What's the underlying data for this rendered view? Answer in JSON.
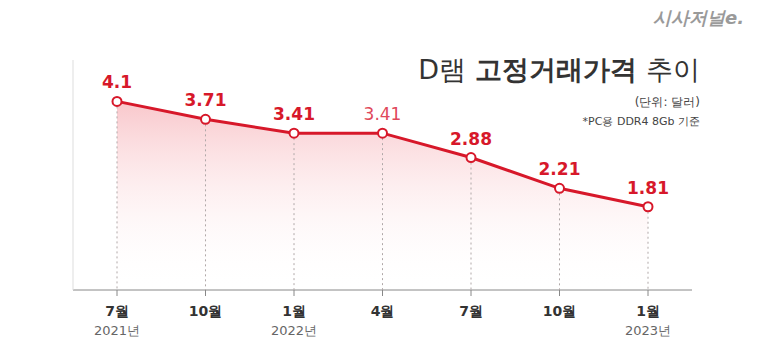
{
  "chart_data": {
    "type": "area",
    "title": "D램 고정거래가격 추이",
    "subtitle": "(단위: 달러)",
    "note": "*PC용 DDR4 8Gb 기준",
    "source": "시사저널e.",
    "categories": [
      "7월",
      "10월",
      "1월",
      "4월",
      "7월",
      "10월",
      "1월"
    ],
    "years": [
      "2021년",
      null,
      "2022년",
      null,
      null,
      null,
      "2023년"
    ],
    "values": [
      4.1,
      3.71,
      3.41,
      3.41,
      2.88,
      2.21,
      1.81
    ],
    "color": "#d7182a",
    "ylim": [
      0,
      5
    ],
    "yticks": [],
    "grid": true,
    "data_labels": true,
    "tick_labels": "x",
    "marker": "circle"
  }
}
